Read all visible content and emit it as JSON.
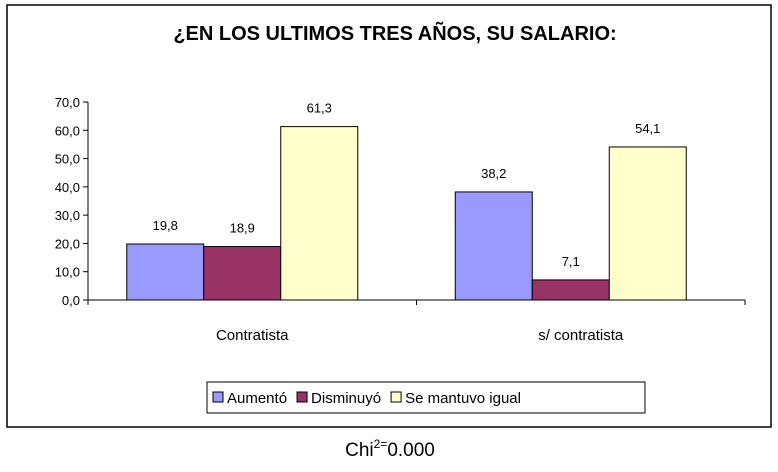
{
  "chart_data": {
    "type": "bar",
    "title": "¿EN LOS ULTIMOS TRES AÑOS, SU SALARIO:",
    "categories": [
      "Contratista",
      "s/ contratista"
    ],
    "series": [
      {
        "name": "Aumentó",
        "color": "#9999ff",
        "values": [
          19.8,
          38.2
        ],
        "value_labels": [
          "19,8",
          "38,2"
        ]
      },
      {
        "name": "Disminuyó",
        "color": "#993366",
        "values": [
          18.9,
          7.1
        ],
        "value_labels": [
          "18,9",
          "7,1"
        ]
      },
      {
        "name": "Se mantuvo igual",
        "color": "#ffffcc",
        "values": [
          61.3,
          54.1
        ],
        "value_labels": [
          "61,3",
          "54,1"
        ]
      }
    ],
    "ylim": [
      0,
      70
    ],
    "yticks": [
      {
        "value": 0,
        "label": "0,0"
      },
      {
        "value": 10,
        "label": "10,0"
      },
      {
        "value": 20,
        "label": "20,0"
      },
      {
        "value": 30,
        "label": "30,0"
      },
      {
        "value": 40,
        "label": "40,0"
      },
      {
        "value": 50,
        "label": "50,0"
      },
      {
        "value": 60,
        "label": "60,0"
      },
      {
        "value": 70,
        "label": "70,0"
      }
    ],
    "legend": "bottom",
    "caption": {
      "base": "Chi",
      "sup": "2=",
      "rest": "0.000"
    }
  }
}
